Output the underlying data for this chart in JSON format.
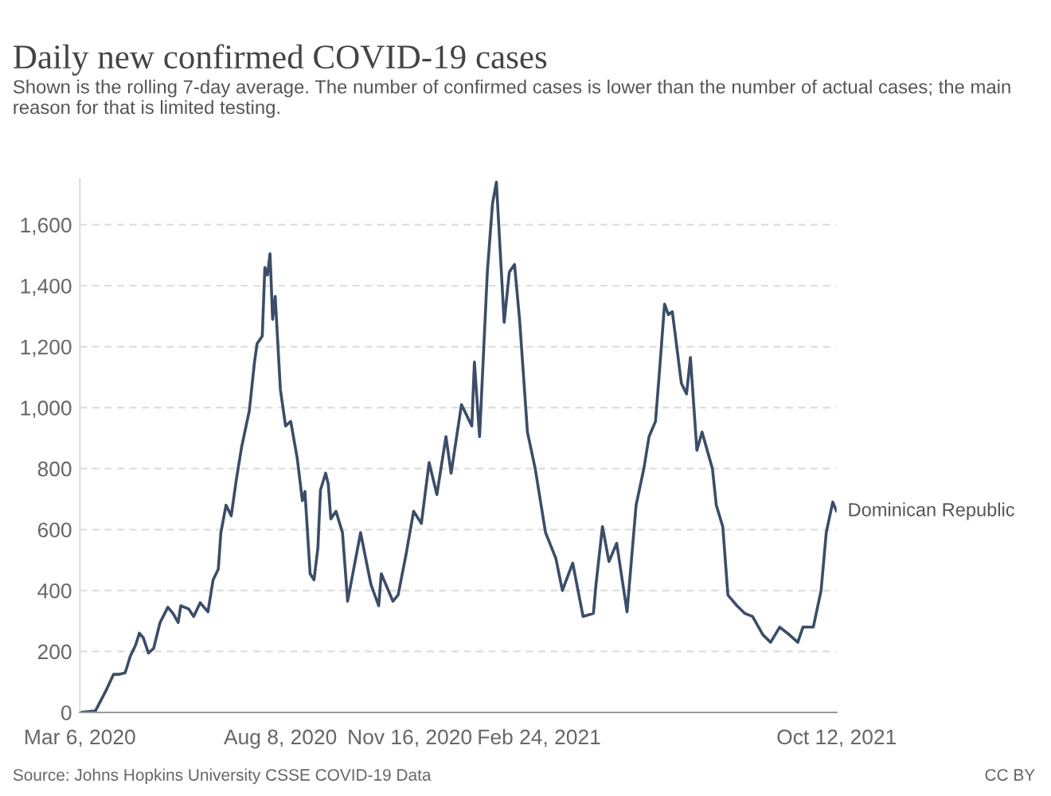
{
  "chart_data": {
    "type": "line",
    "title": "Daily new confirmed COVID-19 cases",
    "subtitle": "Shown is the rolling 7-day average. The number of confirmed cases is lower than the number of actual cases; the main reason for that is limited testing.",
    "annotations": [
      "Source: Johns Hopkins University CSSE COVID-19 Data",
      "CC BY"
    ],
    "x": [
      "2020-03-06",
      "2020-03-18",
      "2020-03-26",
      "2020-04-01",
      "2020-04-05",
      "2020-04-10",
      "2020-04-14",
      "2020-04-18",
      "2020-04-21",
      "2020-04-24",
      "2020-04-28",
      "2020-05-02",
      "2020-05-07",
      "2020-05-13",
      "2020-05-17",
      "2020-05-21",
      "2020-05-23",
      "2020-05-29",
      "2020-06-02",
      "2020-06-07",
      "2020-06-13",
      "2020-06-17",
      "2020-06-21",
      "2020-06-23",
      "2020-06-27",
      "2020-07-01",
      "2020-07-05",
      "2020-07-09",
      "2020-07-15",
      "2020-07-19",
      "2020-07-21",
      "2020-07-25",
      "2020-07-27",
      "2020-07-29",
      "2020-07-31",
      "2020-08-02",
      "2020-08-04",
      "2020-08-08",
      "2020-08-12",
      "2020-08-16",
      "2020-08-21",
      "2020-08-25",
      "2020-08-27",
      "2020-08-31",
      "2020-09-03",
      "2020-09-06",
      "2020-09-08",
      "2020-09-12",
      "2020-09-14",
      "2020-09-16",
      "2020-09-20",
      "2020-09-25",
      "2020-09-29",
      "2020-10-09",
      "2020-10-17",
      "2020-10-23",
      "2020-10-25",
      "2020-11-03",
      "2020-11-07",
      "2020-11-13",
      "2020-11-19",
      "2020-11-25",
      "2020-12-01",
      "2020-12-07",
      "2020-12-14",
      "2020-12-18",
      "2020-12-26",
      "2021-01-03",
      "2021-01-05",
      "2021-01-09",
      "2021-01-15",
      "2021-01-19",
      "2021-01-22",
      "2021-01-28",
      "2021-02-01",
      "2021-02-05",
      "2021-02-09",
      "2021-02-15",
      "2021-02-21",
      "2021-03-01",
      "2021-03-09",
      "2021-03-14",
      "2021-03-22",
      "2021-03-30",
      "2021-04-07",
      "2021-04-09",
      "2021-04-14",
      "2021-04-19",
      "2021-04-25",
      "2021-05-03",
      "2021-05-10",
      "2021-05-16",
      "2021-05-20",
      "2021-05-25",
      "2021-05-28",
      "2021-06-01",
      "2021-06-04",
      "2021-06-07",
      "2021-06-14",
      "2021-06-18",
      "2021-06-21",
      "2021-06-26",
      "2021-06-30",
      "2021-07-08",
      "2021-07-11",
      "2021-07-16",
      "2021-07-20",
      "2021-07-27",
      "2021-08-02",
      "2021-08-08",
      "2021-08-16",
      "2021-08-22",
      "2021-08-29",
      "2021-09-04",
      "2021-09-12",
      "2021-09-16",
      "2021-09-24",
      "2021-09-30",
      "2021-10-04",
      "2021-10-09",
      "2021-10-12"
    ],
    "series": [
      {
        "name": "Dominican Republic",
        "color": "#3b4d68",
        "values": [
          0,
          5,
          70,
          125,
          125,
          130,
          185,
          220,
          260,
          245,
          195,
          210,
          295,
          345,
          325,
          295,
          350,
          340,
          315,
          360,
          330,
          435,
          470,
          590,
          680,
          645,
          765,
          870,
          990,
          1150,
          1210,
          1235,
          1460,
          1435,
          1505,
          1290,
          1365,
          1060,
          940,
          955,
          835,
          695,
          725,
          455,
          435,
          540,
          730,
          785,
          750,
          635,
          660,
          590,
          365,
          590,
          420,
          350,
          455,
          365,
          385,
          515,
          660,
          620,
          820,
          715,
          905,
          785,
          1010,
          940,
          1150,
          905,
          1445,
          1670,
          1740,
          1280,
          1445,
          1470,
          1285,
          920,
          800,
          590,
          505,
          400,
          490,
          315,
          325,
          420,
          610,
          495,
          555,
          330,
          680,
          800,
          905,
          955,
          1115,
          1340,
          1305,
          1315,
          1080,
          1045,
          1165,
          860,
          920,
          800,
          680,
          610,
          385,
          350,
          325,
          315,
          255,
          230,
          280,
          260,
          230,
          280,
          280,
          400,
          590,
          690,
          660
        ]
      }
    ],
    "xlim": [
      "2020-03-06",
      "2021-10-12"
    ],
    "xticks": [
      {
        "value": "2020-03-06",
        "label": "Mar 6, 2020"
      },
      {
        "value": "2020-08-08",
        "label": "Aug 8, 2020"
      },
      {
        "value": "2020-11-16",
        "label": "Nov 16, 2020"
      },
      {
        "value": "2021-02-24",
        "label": "Feb 24, 2021"
      },
      {
        "value": "2021-10-12",
        "label": "Oct 12, 2021"
      }
    ],
    "ylim": [
      0,
      1750
    ],
    "yticks": [
      0,
      200,
      400,
      600,
      800,
      {
        "value": 1000,
        "label": "1,000"
      },
      {
        "value": 1200,
        "label": "1,200"
      },
      {
        "value": 1400,
        "label": "1,400"
      },
      {
        "value": 1600,
        "label": "1,600"
      }
    ],
    "grid": "y",
    "marker": "none",
    "line_style": "solid"
  }
}
